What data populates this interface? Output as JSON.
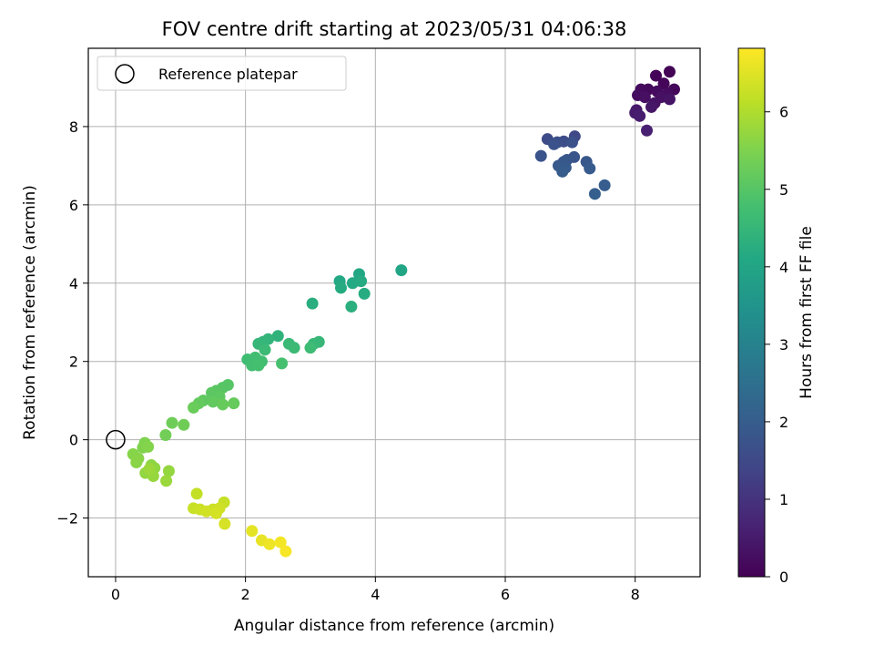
{
  "chart_data": {
    "type": "scatter",
    "title": "FOV centre drift starting at 2023/05/31 04:06:38",
    "xlabel": "Angular distance from reference (arcmin)",
    "ylabel": "Rotation from reference (arcmin)",
    "xlim": [
      -0.42,
      9.0
    ],
    "ylim": [
      -3.5,
      10.0
    ],
    "xticks": [
      0,
      2,
      4,
      6,
      8
    ],
    "yticks": [
      -2,
      0,
      2,
      4,
      6,
      8
    ],
    "xtick_labels": [
      "0",
      "2",
      "4",
      "6",
      "8"
    ],
    "ytick_labels": [
      "−2",
      "0",
      "2",
      "4",
      "6",
      "8"
    ],
    "grid": true,
    "legend": {
      "location": "upper-left",
      "entries": [
        "Reference platepar"
      ]
    },
    "reference_point": {
      "label": "Reference platepar",
      "x": 0,
      "y": 0
    },
    "colorbar": {
      "label": "Hours from first FF file",
      "colormap": "viridis",
      "range": [
        0,
        6.82
      ],
      "ticks": [
        0,
        1,
        2,
        3,
        4,
        5,
        6
      ],
      "tick_labels": [
        "0",
        "1",
        "2",
        "3",
        "4",
        "5",
        "6"
      ]
    },
    "points": [
      {
        "x": 8.53,
        "y": 9.4,
        "t": 0.05
      },
      {
        "x": 8.32,
        "y": 9.3,
        "t": 0.08
      },
      {
        "x": 8.44,
        "y": 9.1,
        "t": 0.1
      },
      {
        "x": 8.6,
        "y": 8.95,
        "t": 0.12
      },
      {
        "x": 8.2,
        "y": 8.95,
        "t": 0.15
      },
      {
        "x": 8.09,
        "y": 8.95,
        "t": 0.18
      },
      {
        "x": 8.34,
        "y": 8.9,
        "t": 0.2
      },
      {
        "x": 8.5,
        "y": 8.85,
        "t": 0.22
      },
      {
        "x": 8.04,
        "y": 8.8,
        "t": 0.25
      },
      {
        "x": 8.15,
        "y": 8.75,
        "t": 0.28
      },
      {
        "x": 8.4,
        "y": 8.75,
        "t": 0.3
      },
      {
        "x": 8.3,
        "y": 8.6,
        "t": 0.33
      },
      {
        "x": 8.53,
        "y": 8.7,
        "t": 0.36
      },
      {
        "x": 8.25,
        "y": 8.5,
        "t": 0.4
      },
      {
        "x": 8.02,
        "y": 8.42,
        "t": 0.45
      },
      {
        "x": 8.0,
        "y": 8.35,
        "t": 0.5
      },
      {
        "x": 8.07,
        "y": 8.27,
        "t": 0.55
      },
      {
        "x": 8.18,
        "y": 7.9,
        "t": 0.6
      },
      {
        "x": 7.07,
        "y": 7.75,
        "t": 1.5
      },
      {
        "x": 6.65,
        "y": 7.68,
        "t": 1.55
      },
      {
        "x": 6.9,
        "y": 7.62,
        "t": 1.6
      },
      {
        "x": 6.8,
        "y": 7.6,
        "t": 1.65
      },
      {
        "x": 7.03,
        "y": 7.6,
        "t": 1.7
      },
      {
        "x": 6.75,
        "y": 7.55,
        "t": 1.72
      },
      {
        "x": 6.55,
        "y": 7.25,
        "t": 1.75
      },
      {
        "x": 7.06,
        "y": 7.22,
        "t": 1.8
      },
      {
        "x": 6.95,
        "y": 7.15,
        "t": 1.82
      },
      {
        "x": 7.25,
        "y": 7.1,
        "t": 1.85
      },
      {
        "x": 6.9,
        "y": 7.1,
        "t": 1.88
      },
      {
        "x": 6.82,
        "y": 7.0,
        "t": 1.9
      },
      {
        "x": 6.93,
        "y": 6.95,
        "t": 1.92
      },
      {
        "x": 7.3,
        "y": 6.93,
        "t": 1.95
      },
      {
        "x": 6.88,
        "y": 6.85,
        "t": 1.98
      },
      {
        "x": 7.53,
        "y": 6.5,
        "t": 2.0
      },
      {
        "x": 7.38,
        "y": 6.28,
        "t": 2.05
      },
      {
        "x": 4.4,
        "y": 4.33,
        "t": 4.0
      },
      {
        "x": 3.75,
        "y": 4.23,
        "t": 4.05
      },
      {
        "x": 3.45,
        "y": 4.05,
        "t": 4.1
      },
      {
        "x": 3.65,
        "y": 4.0,
        "t": 4.12
      },
      {
        "x": 3.78,
        "y": 4.05,
        "t": 4.15
      },
      {
        "x": 3.47,
        "y": 3.88,
        "t": 4.18
      },
      {
        "x": 3.83,
        "y": 3.73,
        "t": 4.2
      },
      {
        "x": 3.03,
        "y": 3.48,
        "t": 4.25
      },
      {
        "x": 3.63,
        "y": 3.4,
        "t": 4.3
      },
      {
        "x": 2.5,
        "y": 2.65,
        "t": 4.4
      },
      {
        "x": 2.35,
        "y": 2.57,
        "t": 4.45
      },
      {
        "x": 2.27,
        "y": 2.5,
        "t": 4.48
      },
      {
        "x": 2.2,
        "y": 2.45,
        "t": 4.5
      },
      {
        "x": 3.13,
        "y": 2.5,
        "t": 4.52
      },
      {
        "x": 3.05,
        "y": 2.45,
        "t": 4.55
      },
      {
        "x": 2.67,
        "y": 2.45,
        "t": 4.58
      },
      {
        "x": 2.75,
        "y": 2.35,
        "t": 4.6
      },
      {
        "x": 2.3,
        "y": 2.3,
        "t": 4.62
      },
      {
        "x": 3.0,
        "y": 2.35,
        "t": 4.65
      },
      {
        "x": 2.03,
        "y": 2.05,
        "t": 4.68
      },
      {
        "x": 2.15,
        "y": 2.1,
        "t": 4.7
      },
      {
        "x": 2.25,
        "y": 2.0,
        "t": 4.72
      },
      {
        "x": 2.1,
        "y": 1.9,
        "t": 4.75
      },
      {
        "x": 2.2,
        "y": 1.9,
        "t": 4.78
      },
      {
        "x": 2.56,
        "y": 1.95,
        "t": 4.8
      },
      {
        "x": 1.73,
        "y": 1.4,
        "t": 5.0
      },
      {
        "x": 1.65,
        "y": 1.33,
        "t": 5.02
      },
      {
        "x": 1.55,
        "y": 1.25,
        "t": 5.05
      },
      {
        "x": 1.48,
        "y": 1.2,
        "t": 5.08
      },
      {
        "x": 1.6,
        "y": 1.1,
        "t": 5.1
      },
      {
        "x": 1.35,
        "y": 1.0,
        "t": 5.12
      },
      {
        "x": 1.5,
        "y": 0.97,
        "t": 5.15
      },
      {
        "x": 1.28,
        "y": 0.93,
        "t": 5.18
      },
      {
        "x": 1.82,
        "y": 0.93,
        "t": 5.2
      },
      {
        "x": 1.65,
        "y": 0.9,
        "t": 5.22
      },
      {
        "x": 1.2,
        "y": 0.82,
        "t": 5.25
      },
      {
        "x": 0.87,
        "y": 0.43,
        "t": 5.3
      },
      {
        "x": 1.05,
        "y": 0.38,
        "t": 5.32
      },
      {
        "x": 0.77,
        "y": 0.12,
        "t": 5.35
      },
      {
        "x": 0.45,
        "y": -0.08,
        "t": 5.5
      },
      {
        "x": 0.42,
        "y": -0.2,
        "t": 5.52
      },
      {
        "x": 0.5,
        "y": -0.18,
        "t": 5.55
      },
      {
        "x": 0.27,
        "y": -0.37,
        "t": 5.58
      },
      {
        "x": 0.35,
        "y": -0.48,
        "t": 5.6
      },
      {
        "x": 0.32,
        "y": -0.58,
        "t": 5.62
      },
      {
        "x": 0.55,
        "y": -0.65,
        "t": 5.65
      },
      {
        "x": 0.6,
        "y": -0.72,
        "t": 5.68
      },
      {
        "x": 0.46,
        "y": -0.85,
        "t": 5.7
      },
      {
        "x": 0.82,
        "y": -0.8,
        "t": 5.72
      },
      {
        "x": 0.58,
        "y": -0.93,
        "t": 5.75
      },
      {
        "x": 0.78,
        "y": -1.05,
        "t": 5.78
      },
      {
        "x": 0.52,
        "y": -0.75,
        "t": 5.8
      },
      {
        "x": 1.25,
        "y": -1.38,
        "t": 6.2
      },
      {
        "x": 1.67,
        "y": -1.6,
        "t": 6.22
      },
      {
        "x": 1.2,
        "y": -1.75,
        "t": 6.25
      },
      {
        "x": 1.3,
        "y": -1.78,
        "t": 6.28
      },
      {
        "x": 1.5,
        "y": -1.78,
        "t": 6.3
      },
      {
        "x": 1.6,
        "y": -1.75,
        "t": 6.32
      },
      {
        "x": 1.4,
        "y": -1.83,
        "t": 6.35
      },
      {
        "x": 1.55,
        "y": -1.88,
        "t": 6.38
      },
      {
        "x": 1.68,
        "y": -2.15,
        "t": 6.4
      },
      {
        "x": 2.1,
        "y": -2.33,
        "t": 6.55
      },
      {
        "x": 2.25,
        "y": -2.57,
        "t": 6.6
      },
      {
        "x": 2.37,
        "y": -2.67,
        "t": 6.65
      },
      {
        "x": 2.54,
        "y": -2.62,
        "t": 6.7
      },
      {
        "x": 2.62,
        "y": -2.85,
        "t": 6.75
      }
    ]
  }
}
